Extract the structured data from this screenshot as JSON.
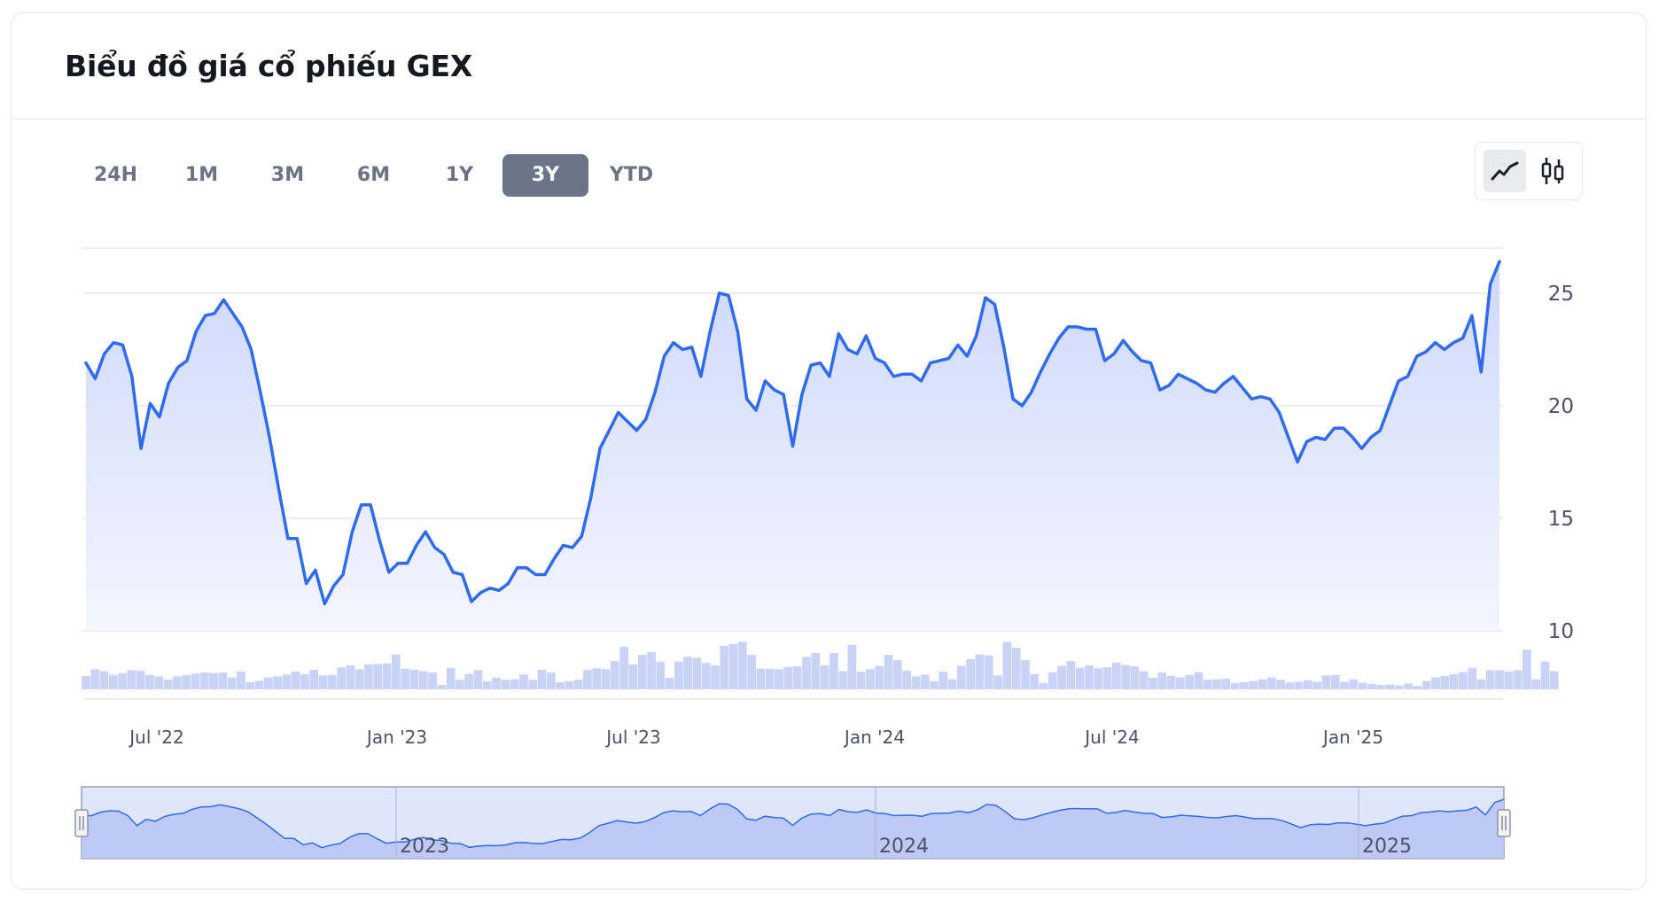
{
  "header": {
    "title": "Biểu đồ giá cổ phiếu GEX"
  },
  "ranges": [
    "24H",
    "1M",
    "3M",
    "6M",
    "1Y",
    "3Y",
    "YTD"
  ],
  "active_range": "3Y",
  "chart_types": [
    {
      "name": "line-chart-icon",
      "active": true
    },
    {
      "name": "candlestick-icon",
      "active": false
    }
  ],
  "colors": {
    "line": "#2f6bf2",
    "area_top": "#cdd8fb",
    "volume": "#c9d2f7",
    "navigator_fill": "#b9c4f5",
    "active_range_bg": "#6a7589"
  },
  "chart_data": {
    "type": "line",
    "title": "Biểu đồ giá cổ phiếu GEX",
    "xlabel": "",
    "ylabel": "",
    "ylim": [
      10,
      27
    ],
    "yticks": [
      "25",
      "20",
      "15",
      "10"
    ],
    "xticks": [
      "Jul '22",
      "Jan '23",
      "Jul '23",
      "Jan '24",
      "Jul '24",
      "Jan '25"
    ],
    "navigator_ticks": [
      "2023",
      "2024",
      "2025"
    ],
    "grid": true,
    "series": [
      {
        "values": [
          21.9,
          21.2,
          22.3,
          22.8,
          22.7,
          21.3,
          18.1,
          20.1,
          19.5,
          21,
          21.7,
          22,
          23.3,
          24,
          24.1,
          24.7,
          24.1,
          23.5,
          22.5,
          20.6,
          18.6,
          16.3,
          14.1,
          14.1,
          12.1,
          12.7,
          11.2,
          12,
          12.5,
          14.4,
          15.6,
          15.6,
          14,
          12.6,
          13,
          13,
          13.8,
          14.4,
          13.7,
          13.4,
          12.6,
          12.5,
          11.3,
          11.7,
          11.9,
          11.8,
          12.1,
          12.8,
          12.8,
          12.5,
          12.5,
          13.2,
          13.8,
          13.7,
          14.2,
          15.9,
          18.1,
          18.9,
          19.7,
          19.3,
          18.9,
          19.4,
          20.6,
          22.2,
          22.8,
          22.5,
          22.6,
          21.3,
          23.3,
          25,
          24.9,
          23.3,
          20.3,
          19.8,
          21.1,
          20.7,
          20.5,
          18.2,
          20.5,
          21.8,
          21.9,
          21.3,
          23.2,
          22.5,
          22.3,
          23.1,
          22.1,
          21.9,
          21.3,
          21.4,
          21.4,
          21.1,
          21.9,
          22,
          22.1,
          22.7,
          22.2,
          23.1,
          24.8,
          24.5,
          22.6,
          20.3,
          20,
          20.6,
          21.5,
          22.3,
          23,
          23.5,
          23.5,
          23.4,
          23.4,
          22,
          22.3,
          22.9,
          22.4,
          22,
          21.9,
          20.7,
          20.9,
          21.4,
          21.2,
          21,
          20.7,
          20.6,
          21,
          21.3,
          20.8,
          20.3,
          20.4,
          20.3,
          19.7,
          18.6,
          17.5,
          18.4,
          18.6,
          18.5,
          19,
          19,
          18.6,
          18.1,
          18.6,
          18.9,
          20,
          21.1,
          21.3,
          22.2,
          22.4,
          22.8,
          22.5,
          22.8,
          23,
          24,
          21.5,
          25.4,
          26.4
        ]
      }
    ],
    "volume": [
      0.28,
      0.42,
      0.38,
      0.3,
      0.34,
      0.4,
      0.39,
      0.3,
      0.27,
      0.2,
      0.27,
      0.3,
      0.33,
      0.35,
      0.34,
      0.35,
      0.25,
      0.37,
      0.15,
      0.18,
      0.25,
      0.27,
      0.31,
      0.37,
      0.32,
      0.41,
      0.29,
      0.3,
      0.46,
      0.5,
      0.42,
      0.52,
      0.53,
      0.54,
      0.73,
      0.43,
      0.41,
      0.38,
      0.35,
      0.09,
      0.45,
      0.2,
      0.32,
      0.4,
      0.17,
      0.24,
      0.2,
      0.21,
      0.31,
      0.2,
      0.41,
      0.35,
      0.15,
      0.17,
      0.2,
      0.41,
      0.44,
      0.42,
      0.59,
      0.89,
      0.52,
      0.72,
      0.78,
      0.58,
      0.24,
      0.58,
      0.68,
      0.66,
      0.55,
      0.5,
      0.91,
      0.95,
      0.99,
      0.72,
      0.43,
      0.43,
      0.42,
      0.47,
      0.48,
      0.68,
      0.76,
      0.5,
      0.76,
      0.38,
      0.93,
      0.37,
      0.42,
      0.49,
      0.72,
      0.61,
      0.39,
      0.27,
      0.31,
      0.17,
      0.37,
      0.21,
      0.49,
      0.63,
      0.73,
      0.71,
      0.29,
      0.99,
      0.87,
      0.61,
      0.32,
      0.13,
      0.36,
      0.49,
      0.59,
      0.45,
      0.5,
      0.44,
      0.46,
      0.56,
      0.51,
      0.48,
      0.38,
      0.24,
      0.35,
      0.28,
      0.25,
      0.3,
      0.36,
      0.2,
      0.21,
      0.22,
      0.13,
      0.15,
      0.17,
      0.21,
      0.25,
      0.2,
      0.14,
      0.16,
      0.19,
      0.16,
      0.29,
      0.3,
      0.16,
      0.21,
      0.14,
      0.11,
      0.09,
      0.1,
      0.08,
      0.12,
      0.07,
      0.17,
      0.25,
      0.28,
      0.32,
      0.36,
      0.45,
      0.21,
      0.4,
      0.4,
      0.37,
      0.4,
      0.83,
      0.21,
      0.58,
      0.38
    ]
  }
}
